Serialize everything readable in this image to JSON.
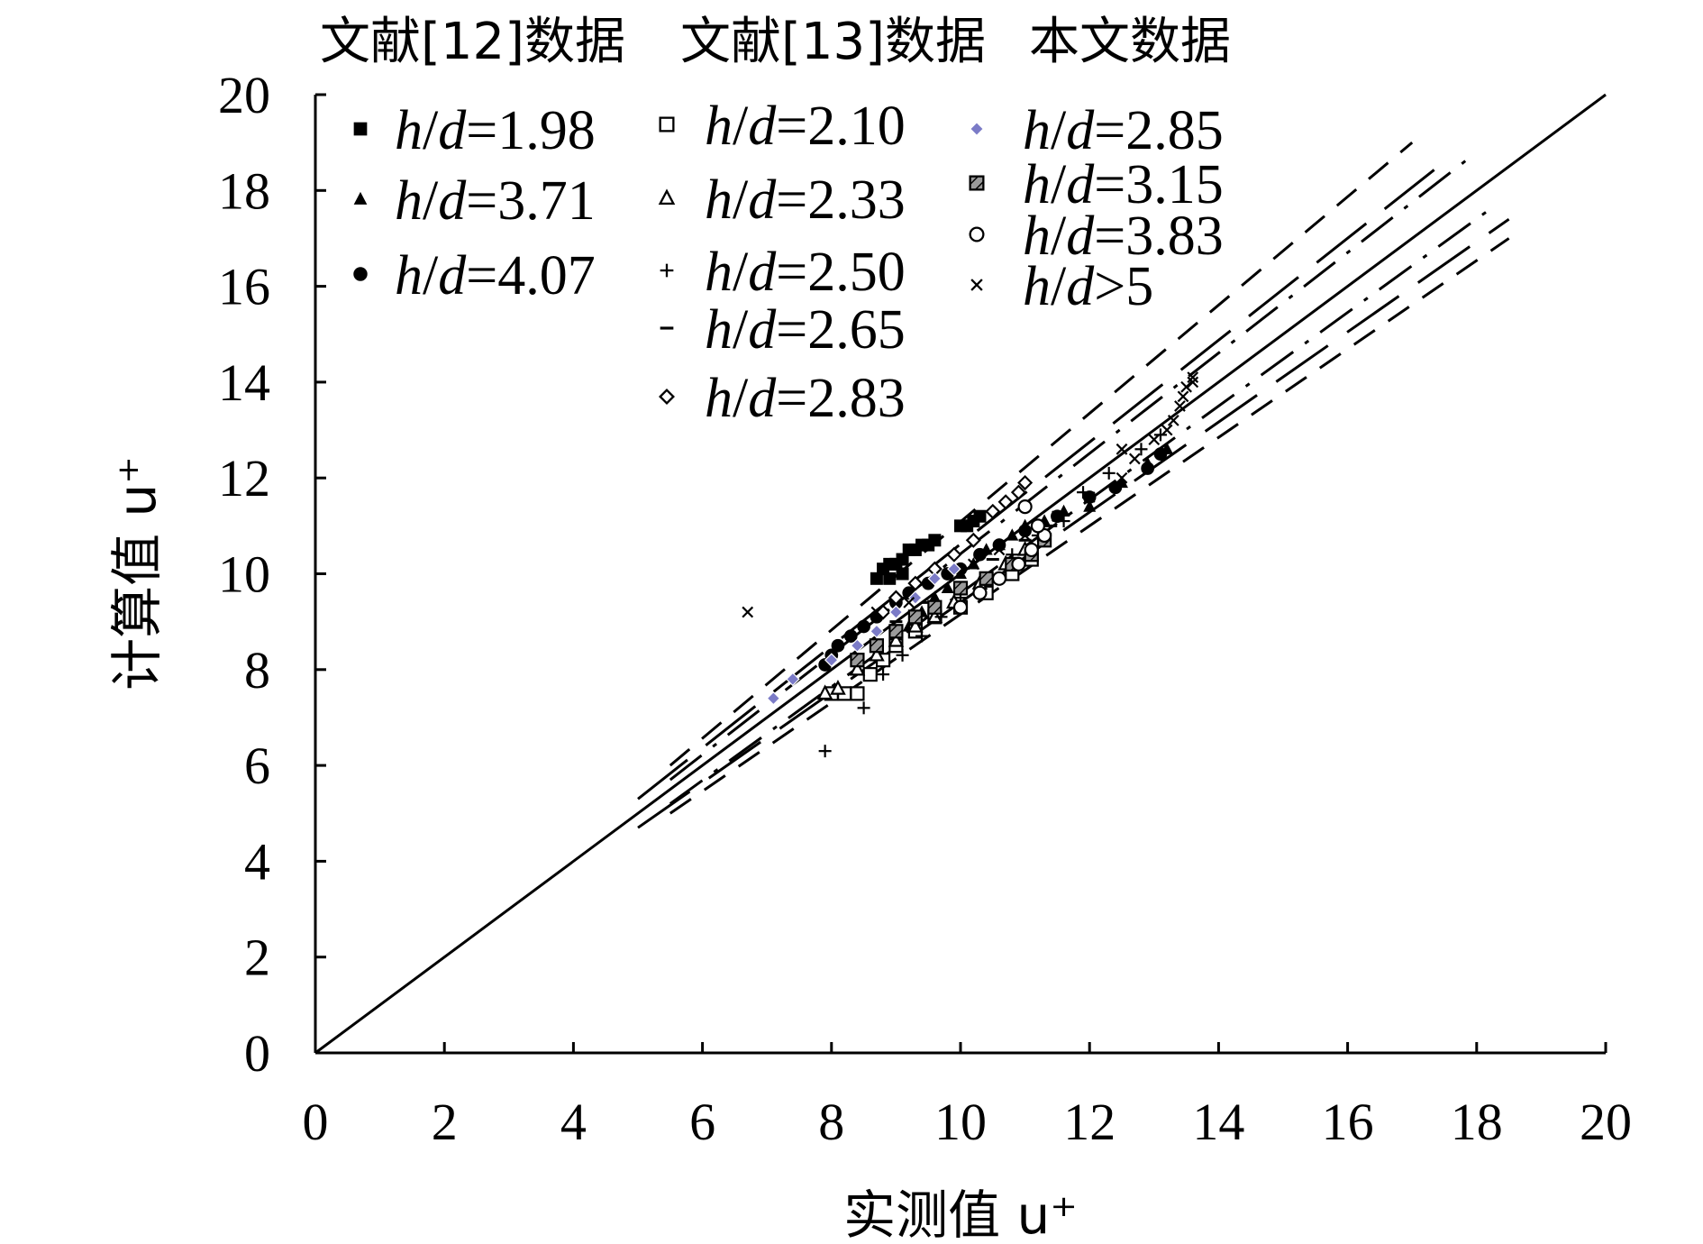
{
  "chart_data": {
    "type": "scatter",
    "xlabel": "实测值 u⁺",
    "ylabel": "计算值 u⁺",
    "xlim": [
      0,
      20
    ],
    "ylim": [
      0,
      20
    ],
    "x_ticks": [
      0,
      2,
      4,
      6,
      8,
      10,
      12,
      14,
      16,
      18,
      20
    ],
    "y_ticks": [
      0,
      2,
      4,
      6,
      8,
      10,
      12,
      14,
      16,
      18,
      20
    ],
    "grid": false,
    "legend_placement": "top-left",
    "legend_groups": [
      {
        "title": "文献[12]数据",
        "entries": [
          "h/d=1.98",
          "h/d=3.71",
          "h/d=4.07"
        ]
      },
      {
        "title": "文献[13]数据",
        "entries": [
          "h/d=2.10",
          "h/d=2.33",
          "h/d=2.50",
          "h/d=2.65",
          "h/d=2.83"
        ]
      },
      {
        "title": "本文数据",
        "entries": [
          "h/d=2.85",
          "h/d=3.15",
          "h/d=3.83",
          "h/d>5"
        ]
      }
    ],
    "reference_lines": [
      {
        "style": "solid",
        "x": [
          0,
          20
        ],
        "y": [
          0,
          20
        ]
      },
      {
        "style": "dashed",
        "x": [
          5.5,
          17
        ],
        "y": [
          6.0,
          19.0
        ]
      },
      {
        "style": "dashed",
        "x": [
          5.5,
          18.5
        ],
        "y": [
          5.0,
          17.0
        ]
      },
      {
        "style": "long-dash",
        "x": [
          5.0,
          17.5
        ],
        "y": [
          5.3,
          18.6
        ]
      },
      {
        "style": "long-dash",
        "x": [
          5.0,
          18.5
        ],
        "y": [
          4.7,
          17.4
        ]
      },
      {
        "style": "dash-dot",
        "x": [
          5.5,
          18
        ],
        "y": [
          5.7,
          18.8
        ]
      },
      {
        "style": "dash-dot",
        "x": [
          5.5,
          18.3
        ],
        "y": [
          5.2,
          17.7
        ]
      }
    ],
    "series": [
      {
        "name": "h/d=1.98",
        "marker": "square-filled",
        "color": "#000000",
        "points": [
          [
            8.8,
            10.1
          ],
          [
            8.9,
            10.2
          ],
          [
            9.0,
            10.2
          ],
          [
            9.1,
            10.3
          ],
          [
            9.2,
            10.5
          ],
          [
            9.3,
            10.5
          ],
          [
            9.4,
            10.6
          ],
          [
            9.5,
            10.6
          ],
          [
            9.6,
            10.7
          ],
          [
            10.0,
            11.0
          ],
          [
            10.1,
            11.0
          ],
          [
            10.2,
            11.1
          ],
          [
            10.3,
            11.2
          ],
          [
            8.7,
            9.9
          ],
          [
            8.9,
            9.9
          ],
          [
            9.1,
            10.0
          ]
        ]
      },
      {
        "name": "h/d=3.71",
        "marker": "triangle-filled",
        "color": "#000000",
        "points": [
          [
            9.0,
            8.7
          ],
          [
            9.2,
            8.9
          ],
          [
            9.4,
            9.2
          ],
          [
            9.6,
            9.5
          ],
          [
            9.8,
            9.7
          ],
          [
            10.0,
            10.0
          ],
          [
            10.2,
            10.2
          ],
          [
            10.4,
            10.5
          ],
          [
            10.6,
            10.6
          ],
          [
            10.8,
            10.8
          ],
          [
            11.0,
            11.0
          ],
          [
            11.3,
            11.1
          ],
          [
            11.6,
            11.3
          ],
          [
            12.0,
            11.4
          ],
          [
            12.5,
            11.9
          ],
          [
            12.9,
            12.3
          ],
          [
            13.2,
            12.6
          ]
        ]
      },
      {
        "name": "h/d=4.07",
        "marker": "circle-filled",
        "color": "#000000",
        "points": [
          [
            7.9,
            8.1
          ],
          [
            8.0,
            8.3
          ],
          [
            8.1,
            8.5
          ],
          [
            8.3,
            8.7
          ],
          [
            8.5,
            8.9
          ],
          [
            8.7,
            9.1
          ],
          [
            9.0,
            9.4
          ],
          [
            9.2,
            9.6
          ],
          [
            9.5,
            9.8
          ],
          [
            9.8,
            10.0
          ],
          [
            10.0,
            10.1
          ],
          [
            10.3,
            10.4
          ],
          [
            10.6,
            10.6
          ],
          [
            11.0,
            10.9
          ],
          [
            11.5,
            11.2
          ],
          [
            12.0,
            11.6
          ],
          [
            12.4,
            11.8
          ],
          [
            12.9,
            12.2
          ],
          [
            13.1,
            12.5
          ]
        ]
      },
      {
        "name": "h/d=2.10",
        "marker": "square-open",
        "color": "#000000",
        "points": [
          [
            8.0,
            7.5
          ],
          [
            8.2,
            7.5
          ],
          [
            8.4,
            7.5
          ],
          [
            8.6,
            7.9
          ],
          [
            8.8,
            8.2
          ],
          [
            9.0,
            8.5
          ],
          [
            9.3,
            8.8
          ],
          [
            9.6,
            9.1
          ],
          [
            10.0,
            9.3
          ],
          [
            10.4,
            9.6
          ],
          [
            10.8,
            10.0
          ],
          [
            11.1,
            10.3
          ]
        ]
      },
      {
        "name": "h/d=2.33",
        "marker": "triangle-open",
        "color": "#000000",
        "points": [
          [
            7.9,
            7.5
          ],
          [
            8.1,
            7.6
          ],
          [
            8.4,
            8.0
          ],
          [
            8.7,
            8.3
          ],
          [
            9.0,
            8.6
          ],
          [
            9.3,
            8.9
          ],
          [
            9.6,
            9.1
          ],
          [
            9.9,
            9.4
          ],
          [
            10.3,
            9.8
          ],
          [
            10.7,
            10.2
          ],
          [
            11.0,
            10.5
          ]
        ]
      },
      {
        "name": "h/d=2.50",
        "marker": "plus",
        "color": "#000000",
        "points": [
          [
            7.9,
            6.3
          ],
          [
            8.5,
            7.2
          ],
          [
            8.8,
            7.9
          ],
          [
            9.1,
            8.3
          ],
          [
            9.4,
            8.7
          ],
          [
            9.7,
            9.1
          ],
          [
            10.0,
            9.5
          ],
          [
            10.4,
            9.9
          ],
          [
            10.8,
            10.4
          ],
          [
            11.2,
            10.8
          ],
          [
            11.6,
            11.1
          ],
          [
            11.9,
            11.7
          ],
          [
            12.3,
            12.1
          ],
          [
            12.8,
            12.6
          ],
          [
            13.1,
            12.9
          ]
        ]
      },
      {
        "name": "h/d=2.65",
        "marker": "dash",
        "color": "#000000",
        "points": [
          [
            9.0,
            9.0
          ],
          [
            9.5,
            9.4
          ],
          [
            10.0,
            9.8
          ],
          [
            10.5,
            10.3
          ],
          [
            11.0,
            10.7
          ],
          [
            11.4,
            11.0
          ]
        ]
      },
      {
        "name": "h/d=2.83",
        "marker": "diamond-open",
        "color": "#000000",
        "points": [
          [
            8.8,
            9.2
          ],
          [
            9.0,
            9.5
          ],
          [
            9.3,
            9.8
          ],
          [
            9.6,
            10.1
          ],
          [
            9.9,
            10.4
          ],
          [
            10.2,
            10.7
          ],
          [
            10.5,
            11.3
          ],
          [
            10.7,
            11.5
          ],
          [
            10.9,
            11.7
          ],
          [
            11.0,
            11.9
          ]
        ]
      },
      {
        "name": "h/d=2.85",
        "marker": "diamond-filled",
        "color": "#7b7bc7",
        "points": [
          [
            7.1,
            7.4
          ],
          [
            7.4,
            7.8
          ],
          [
            8.0,
            8.2
          ],
          [
            8.4,
            8.5
          ],
          [
            8.7,
            8.8
          ],
          [
            9.0,
            9.2
          ],
          [
            9.3,
            9.5
          ],
          [
            9.6,
            9.9
          ],
          [
            9.9,
            10.1
          ]
        ]
      },
      {
        "name": "h/d=3.15",
        "marker": "square-hatched",
        "color": "#000000",
        "points": [
          [
            8.4,
            8.2
          ],
          [
            8.7,
            8.5
          ],
          [
            9.0,
            8.8
          ],
          [
            9.3,
            9.1
          ],
          [
            9.6,
            9.3
          ],
          [
            10.0,
            9.7
          ],
          [
            10.4,
            9.9
          ],
          [
            10.8,
            10.2
          ],
          [
            11.1,
            10.4
          ],
          [
            11.3,
            10.7
          ]
        ]
      },
      {
        "name": "h/d=3.83",
        "marker": "circle-open",
        "color": "#000000",
        "points": [
          [
            10.0,
            9.3
          ],
          [
            10.3,
            9.6
          ],
          [
            10.6,
            9.9
          ],
          [
            10.9,
            10.2
          ],
          [
            11.1,
            10.5
          ],
          [
            11.3,
            10.8
          ],
          [
            11.2,
            11.0
          ],
          [
            11.0,
            11.4
          ]
        ]
      },
      {
        "name": "h/d>5",
        "marker": "x",
        "color": "#000000",
        "points": [
          [
            6.7,
            9.2
          ],
          [
            8.7,
            9.2
          ],
          [
            9.2,
            9.4
          ],
          [
            10.2,
            10.2
          ],
          [
            10.6,
            10.5
          ],
          [
            11.0,
            10.8
          ],
          [
            11.5,
            11.2
          ],
          [
            12.0,
            11.6
          ],
          [
            12.5,
            12.0
          ],
          [
            12.7,
            12.4
          ],
          [
            13.0,
            12.8
          ],
          [
            13.2,
            13.0
          ],
          [
            13.3,
            13.2
          ],
          [
            13.4,
            13.5
          ],
          [
            13.45,
            13.7
          ],
          [
            13.5,
            13.9
          ],
          [
            13.6,
            14.0
          ],
          [
            13.6,
            14.1
          ],
          [
            12.5,
            12.6
          ]
        ]
      }
    ]
  }
}
